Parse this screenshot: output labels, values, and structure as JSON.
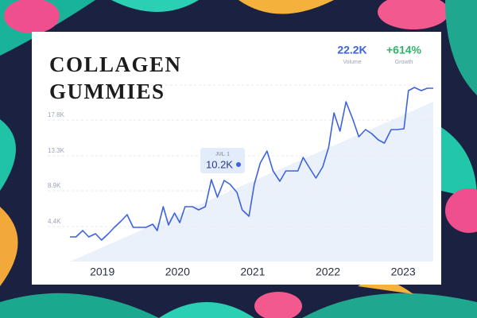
{
  "chart_data": {
    "type": "line",
    "title_lines": [
      "COLLAGEN",
      "GUMMIES"
    ],
    "stats": [
      {
        "value": "22.2K",
        "label": "Volume"
      },
      {
        "value": "+614%",
        "label": "Growth"
      }
    ],
    "annotation": {
      "date": "JUL. 1",
      "text": "10.2K"
    },
    "x": [
      2018.57,
      2018.65,
      2018.74,
      2018.82,
      2018.91,
      2018.99,
      2019.08,
      2019.16,
      2019.25,
      2019.33,
      2019.41,
      2019.5,
      2019.58,
      2019.67,
      2019.73,
      2019.81,
      2019.88,
      2019.96,
      2020.03,
      2020.1,
      2020.2,
      2020.28,
      2020.37,
      2020.45,
      2020.53,
      2020.62,
      2020.7,
      2020.79,
      2020.86,
      2020.95,
      2021.02,
      2021.1,
      2021.19,
      2021.27,
      2021.36,
      2021.44,
      2021.53,
      2021.6,
      2021.67,
      2021.76,
      2021.84,
      2021.93,
      2022.01,
      2022.08,
      2022.16,
      2022.24,
      2022.33,
      2022.41,
      2022.5,
      2022.58,
      2022.67,
      2022.75,
      2022.84,
      2022.92,
      2023.01,
      2023.07,
      2023.15,
      2023.24,
      2023.32,
      2023.4
    ],
    "series": [
      {
        "color": "#3d63dd",
        "values": [
          3.1,
          3.1,
          3.9,
          3.1,
          3.5,
          2.7,
          3.5,
          4.3,
          5.1,
          5.9,
          4.3,
          4.3,
          4.3,
          4.7,
          3.9,
          6.9,
          4.6,
          6.1,
          4.9,
          6.9,
          6.9,
          6.5,
          6.9,
          10.3,
          8.1,
          10.2,
          9.7,
          8.7,
          6.5,
          5.7,
          9.7,
          12.4,
          13.9,
          11.4,
          10.1,
          11.4,
          11.4,
          11.4,
          13.1,
          11.7,
          10.5,
          11.9,
          14.4,
          18.7,
          16.4,
          20.1,
          17.9,
          15.7,
          16.6,
          16.1,
          15.3,
          14.9,
          16.6,
          16.6,
          16.7,
          21.5,
          21.9,
          21.5,
          21.8,
          21.8
        ]
      }
    ],
    "xlim": [
      2018.57,
      2023.4
    ],
    "xticks": [
      2019,
      2020,
      2021,
      2022,
      2023
    ],
    "ylim": [
      0,
      22.2
    ],
    "yticks": [
      {
        "value": 4.4,
        "label": "4.4K"
      },
      {
        "value": 8.9,
        "label": "8.9K"
      },
      {
        "value": 13.3,
        "label": "13.3K"
      },
      {
        "value": 17.8,
        "label": "17.8K"
      }
    ],
    "grid": true
  }
}
